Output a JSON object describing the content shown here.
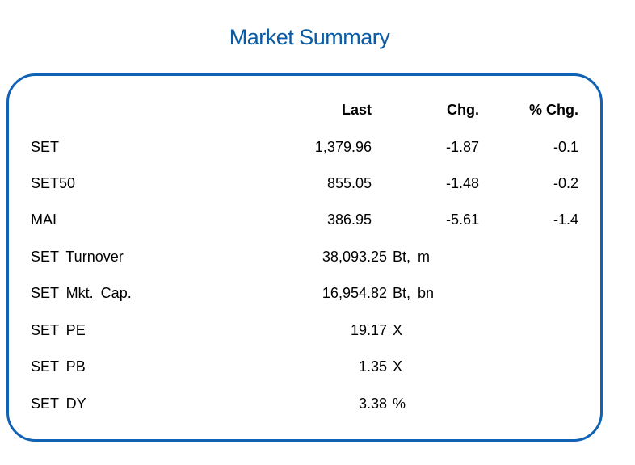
{
  "title": "Market Summary",
  "header": {
    "last": "Last",
    "chg": "Chg.",
    "pct_chg": "% Chg."
  },
  "indices": [
    {
      "name": "SET",
      "last": "1,379.96",
      "chg": "-1.87",
      "pct_chg": "-0.1"
    },
    {
      "name": "SET50",
      "last": "855.05",
      "chg": "-1.48",
      "pct_chg": "-0.2"
    },
    {
      "name": "MAI",
      "last": "386.95",
      "chg": "-5.61",
      "pct_chg": "-1.4"
    }
  ],
  "stats": [
    {
      "name": "SET Turnover",
      "value": "38,093.25",
      "unit": "Bt, m"
    },
    {
      "name": "SET Mkt. Cap.",
      "value": "16,954.82",
      "unit": "Bt, bn"
    },
    {
      "name": "SET PE",
      "value": "19.17",
      "unit": "X"
    },
    {
      "name": "SET PB",
      "value": "1.35",
      "unit": "X"
    },
    {
      "name": "SET DY",
      "value": "3.38",
      "unit": "%"
    }
  ]
}
